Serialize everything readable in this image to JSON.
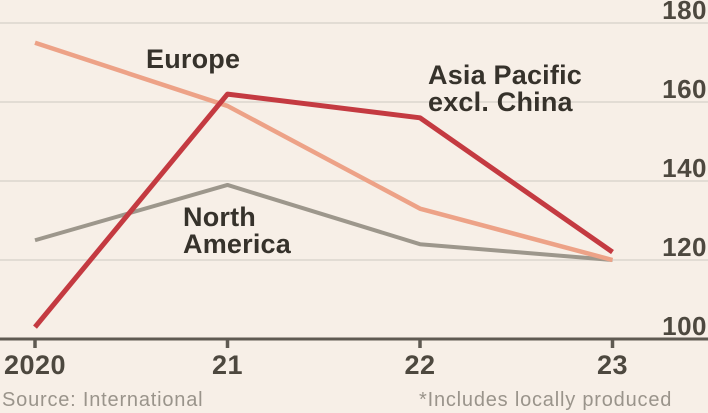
{
  "chart_data": {
    "type": "line",
    "title": "",
    "x_tick_labels": [
      "2020",
      "21",
      "22",
      "23"
    ],
    "yticks": [
      100,
      120,
      140,
      160,
      180
    ],
    "ylim": [
      100,
      180
    ],
    "grid": true,
    "legend_position": "inline-annotations",
    "series": [
      {
        "name": "North America",
        "label": "North America",
        "color": "#9d978c",
        "stroke_width": 4,
        "values": [
          125,
          139,
          124,
          120
        ]
      },
      {
        "name": "Europe",
        "label": "Europe",
        "color": "#eda287",
        "stroke_width": 4.5,
        "values": [
          175,
          159,
          133,
          120
        ]
      },
      {
        "name": "Asia Pacific excl. China",
        "label": "Asia Pacific excl. China",
        "color": "#c43a41",
        "stroke_width": 5,
        "values": [
          103,
          162,
          156,
          122
        ]
      }
    ],
    "colors": {
      "background": "#f7efe7",
      "gridline": "#dcd5cd",
      "axis": "#5f5a52",
      "tick_label": "#4d483f",
      "annotation_text": "#36322b",
      "footer_text": "#9a948b"
    }
  },
  "footer": {
    "source": "Source: International",
    "note": "*Includes locally produced"
  }
}
